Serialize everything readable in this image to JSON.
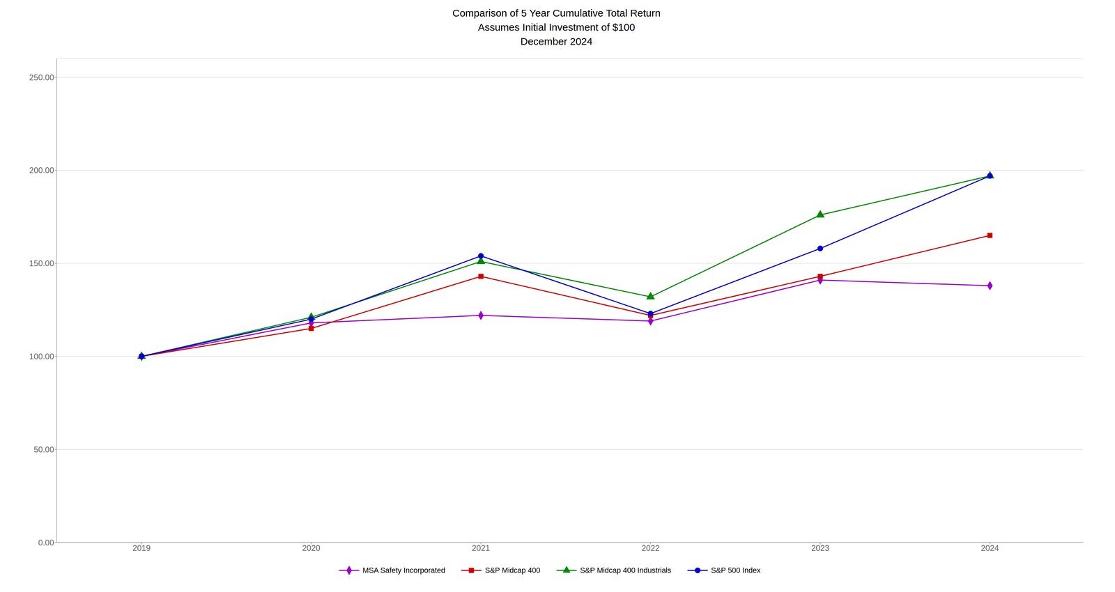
{
  "chart_data": {
    "type": "line",
    "title": "Comparison of 5 Year Cumulative Total Return",
    "subtitle": [
      "Assumes Initial Investment of $100",
      "December 2024"
    ],
    "x": [
      2019,
      2020,
      2021,
      2022,
      2023,
      2024
    ],
    "xlim": [
      2018.5,
      2024.55
    ],
    "xticks": [
      2019,
      2020,
      2021,
      2022,
      2023,
      2024
    ],
    "ylim": [
      0,
      260
    ],
    "yticks": [
      {
        "value": 0,
        "label": "0.00"
      },
      {
        "value": 50,
        "label": "50.00"
      },
      {
        "value": 100,
        "label": "100.00"
      },
      {
        "value": 150,
        "label": "150.00"
      },
      {
        "value": 200,
        "label": "200.00"
      },
      {
        "value": 250,
        "label": "250.00"
      }
    ],
    "grid": true,
    "legend": "bottom",
    "series": [
      {
        "name": "MSA Safety Incorporated",
        "color": "#9900cc",
        "marker": "diamond",
        "values": [
          100.0,
          118.0,
          122.0,
          119.0,
          141.0,
          138.0
        ]
      },
      {
        "name": "S&P Midcap 400",
        "color": "#cc0000",
        "marker": "square",
        "values": [
          100.0,
          115.0,
          143.0,
          122.0,
          143.0,
          165.0
        ]
      },
      {
        "name": "S&P Midcap 400 Industrials",
        "color": "#008800",
        "marker": "triangle",
        "values": [
          100.0,
          121.0,
          151.0,
          132.0,
          176.0,
          197.0
        ]
      },
      {
        "name": "S&P 500 Index",
        "color": "#0000cc",
        "marker": "circle",
        "values": [
          100.0,
          120.0,
          154.0,
          123.0,
          158.0,
          197.0
        ]
      }
    ]
  }
}
